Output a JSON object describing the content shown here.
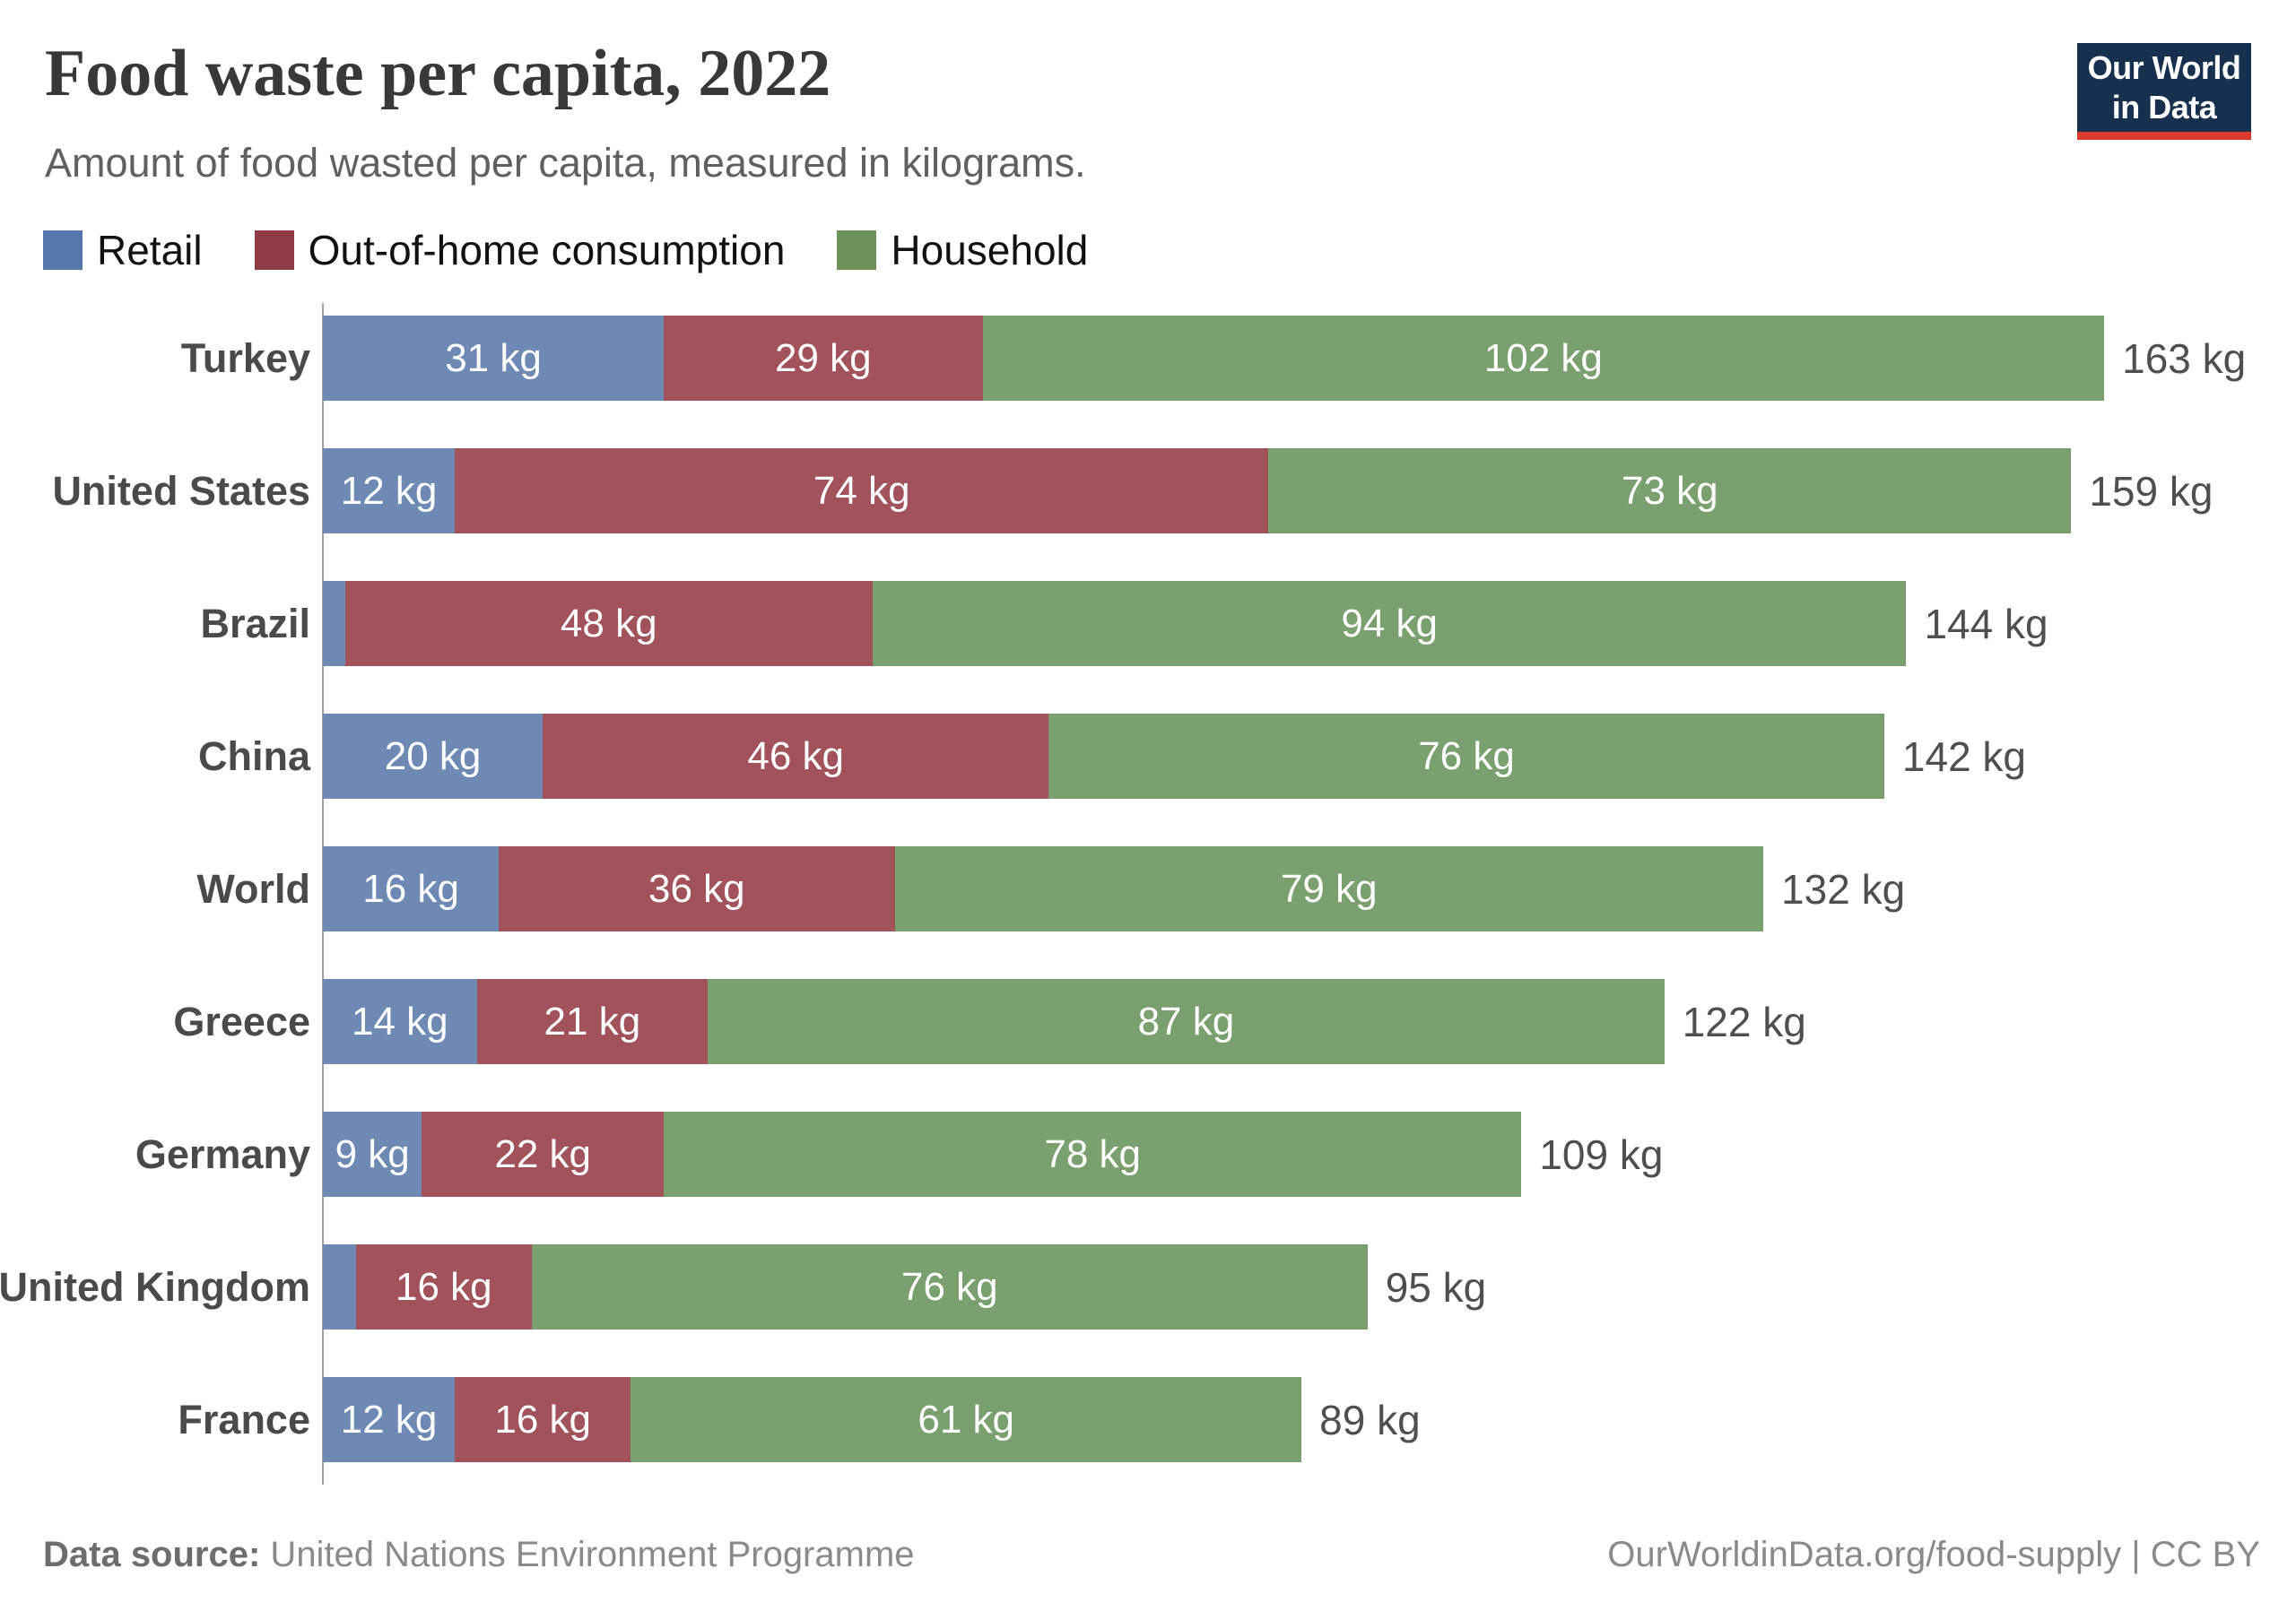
{
  "header": {
    "title": "Food waste per capita, 2022",
    "subtitle": "Amount of food wasted per capita, measured in kilograms."
  },
  "logo": {
    "line1": "Our World",
    "line2": "in Data",
    "bg_color": "#16304e",
    "accent_color": "#dc3a2d"
  },
  "footer": {
    "source_label": "Data source:",
    "source_value": " United Nations Environment Programme",
    "attribution": "OurWorldinData.org/food-supply | CC BY"
  },
  "chart_data": {
    "type": "bar",
    "stacked": true,
    "orientation": "horizontal",
    "title": "Food waste per capita, 2022",
    "unit": "kg",
    "grid": false,
    "legend_position": "top-left",
    "categories": [
      "Turkey",
      "United States",
      "Brazil",
      "China",
      "World",
      "Greece",
      "Germany",
      "United Kingdom",
      "France"
    ],
    "series": [
      {
        "name": "Retail",
        "color": "#6d89b4",
        "legend_color": "#5478ab",
        "values": [
          31,
          12,
          2,
          20,
          16,
          14,
          9,
          3,
          12
        ],
        "labels": [
          "31 kg",
          "12 kg",
          "",
          "20 kg",
          "16 kg",
          "14 kg",
          "9 kg",
          "",
          "12 kg"
        ]
      },
      {
        "name": "Out-of-home consumption",
        "color": "#a1525b",
        "legend_color": "#8f3a44",
        "values": [
          29,
          74,
          48,
          46,
          36,
          21,
          22,
          16,
          16
        ],
        "labels": [
          "29 kg",
          "74 kg",
          "48 kg",
          "46 kg",
          "36 kg",
          "21 kg",
          "22 kg",
          "16 kg",
          "16 kg"
        ]
      },
      {
        "name": "Household",
        "color": "#7ba06f",
        "legend_color": "#6e9257",
        "values": [
          102,
          73,
          94,
          76,
          79,
          87,
          78,
          76,
          61
        ],
        "labels": [
          "102 kg",
          "73 kg",
          "94 kg",
          "76 kg",
          "79 kg",
          "87 kg",
          "78 kg",
          "76 kg",
          "61 kg"
        ]
      }
    ],
    "totals": [
      163,
      159,
      144,
      142,
      132,
      122,
      109,
      95,
      89
    ],
    "total_labels": [
      "163 kg",
      "159 kg",
      "144 kg",
      "142 kg",
      "132 kg",
      "122 kg",
      "109 kg",
      "95 kg",
      "89 kg"
    ],
    "xlim": [
      0,
      163
    ]
  }
}
